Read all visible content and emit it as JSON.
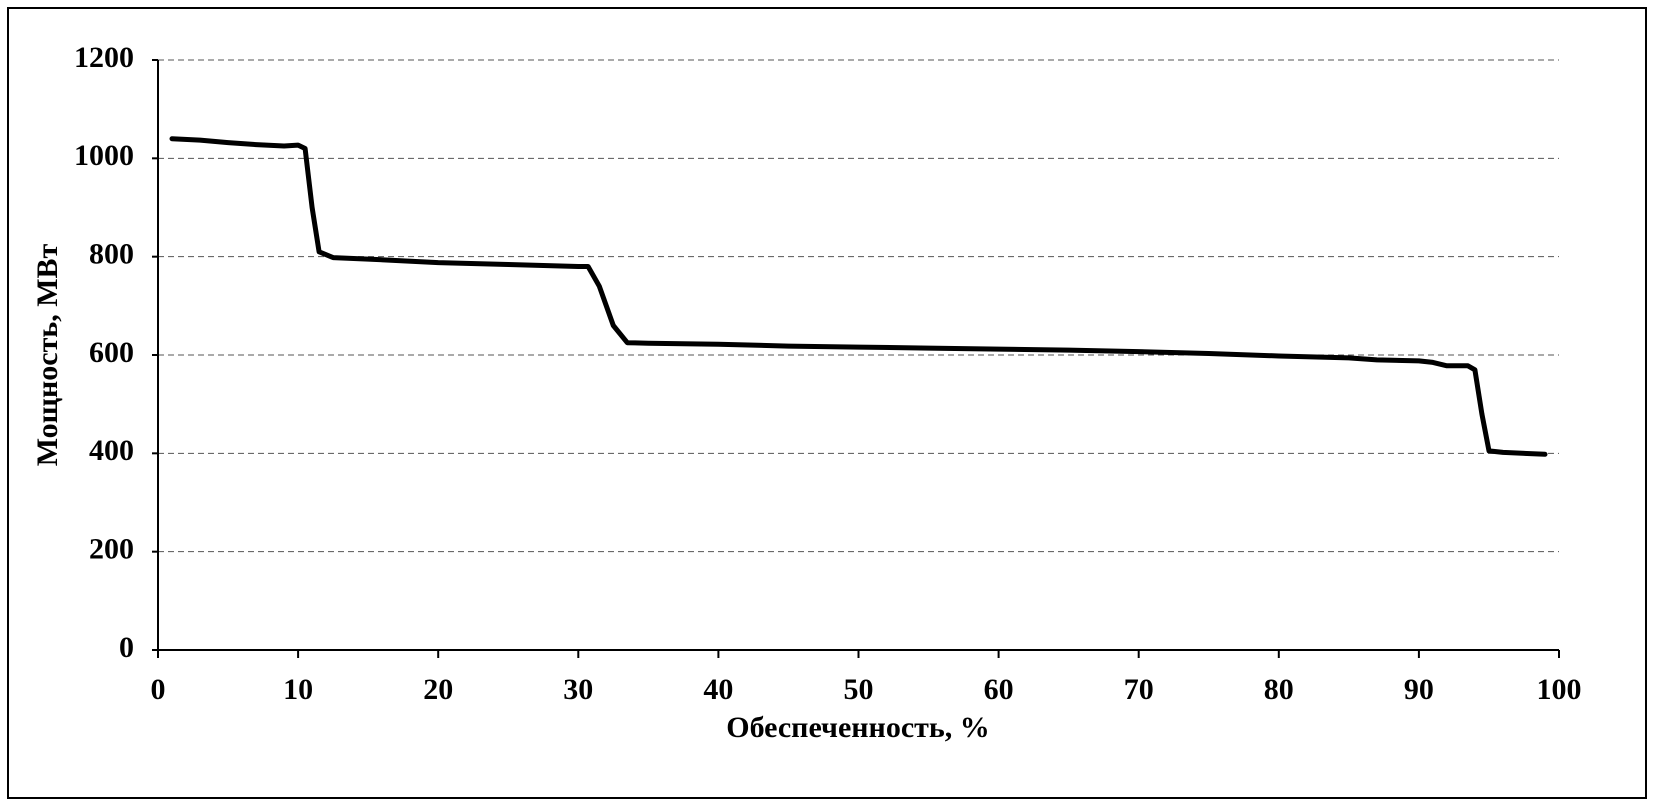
{
  "chart_data": {
    "type": "line",
    "x_label": "Обеспеченность, %",
    "y_label": "Мощность, МВт",
    "x": [
      1,
      3,
      5,
      7,
      9,
      10,
      10.5,
      11,
      11.5,
      12.5,
      15,
      20,
      25,
      30,
      30.7,
      31.5,
      32.5,
      33.5,
      35,
      40,
      45,
      50,
      55,
      60,
      65,
      70,
      75,
      80,
      85,
      87,
      90,
      91,
      92,
      93.5,
      94,
      94.5,
      95,
      96,
      99
    ],
    "values": [
      1040,
      1037,
      1032,
      1028,
      1025,
      1027,
      1020,
      900,
      810,
      798,
      795,
      788,
      784,
      780,
      780,
      740,
      660,
      625,
      624,
      622,
      618,
      616,
      614,
      612,
      610,
      607,
      603,
      598,
      594,
      590,
      588,
      585,
      578,
      578,
      570,
      480,
      405,
      402,
      398
    ],
    "color": "#000000",
    "xlim": [
      0,
      100
    ],
    "xticks": [
      0,
      10,
      20,
      30,
      40,
      50,
      60,
      70,
      80,
      90,
      100
    ],
    "ylim": [
      0,
      1200
    ],
    "yticks": [
      0,
      200,
      400,
      600,
      800,
      1000,
      1200
    ],
    "grid": true
  }
}
